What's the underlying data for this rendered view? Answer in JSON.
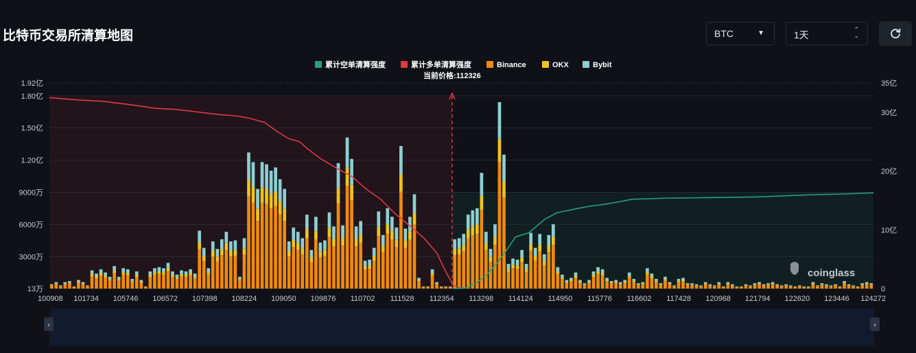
{
  "page": {
    "title": "比特币交易所清算地图"
  },
  "controls": {
    "symbol": {
      "value": "BTC",
      "icon": "caret-down-icon"
    },
    "range": {
      "value": "1天",
      "icon": "sort-updown-icon"
    },
    "refresh": {
      "icon": "refresh-icon"
    }
  },
  "watermark": {
    "text": "coinglass"
  },
  "colors": {
    "short": "#26a17b",
    "long": "#e03a45",
    "binance": "#f08a0c",
    "okx": "#f0c418",
    "bybit": "#8ccfd2",
    "current": "#e03a45"
  },
  "chart_data": {
    "type": "bar",
    "legend_position": "top-center",
    "legend": [
      {
        "name": "累计空单清算强度",
        "color": "#26a17b"
      },
      {
        "name": "累计多单清算强度",
        "color": "#e03a45"
      },
      {
        "name": "Binance",
        "color": "#f08a0c"
      },
      {
        "name": "OKX",
        "color": "#f0c418"
      },
      {
        "name": "Bybit",
        "color": "#8ccfd2"
      }
    ],
    "current_price_label": "当前价格:112326",
    "current_price": 112326,
    "x_range": [
      100908,
      124272
    ],
    "x_ticks": [
      "100908",
      "101734",
      "105746",
      "106572",
      "107398",
      "108224",
      "109050",
      "109876",
      "110702",
      "111528",
      "112354",
      "113298",
      "114124",
      "114950",
      "115776",
      "116602",
      "117428",
      "120968",
      "121794",
      "122620",
      "123446",
      "124272"
    ],
    "left_axis": {
      "ticks": [
        "13万",
        "3000万",
        "6000万",
        "9000万",
        "1.20亿",
        "1.50亿",
        "1.80亿",
        "1.92亿"
      ],
      "tick_values": [
        0.0013,
        0.3,
        0.6,
        0.9,
        1.2,
        1.5,
        1.8,
        1.92
      ],
      "unit": "亿",
      "range": [
        0.0013,
        1.92
      ]
    },
    "right_axis": {
      "ticks": [
        "0",
        "10亿",
        "20亿",
        "30亿",
        "35亿"
      ],
      "tick_values": [
        0,
        10,
        20,
        30,
        35
      ],
      "unit": "亿",
      "range": [
        0,
        35
      ]
    },
    "grid": true,
    "bar_totals": [
      0.04,
      0.06,
      0.03,
      0.06,
      0.07,
      0.02,
      0.08,
      0.06,
      0.03,
      0.17,
      0.14,
      0.18,
      0.15,
      0.11,
      0.21,
      0.11,
      0.19,
      0.18,
      0.09,
      0.16,
      0.08,
      0.02,
      0.16,
      0.19,
      0.2,
      0.19,
      0.24,
      0.16,
      0.13,
      0.17,
      0.16,
      0.18,
      0.14,
      0.54,
      0.38,
      0.19,
      0.44,
      0.37,
      0.46,
      0.53,
      0.44,
      0.45,
      0.11,
      0.47,
      1.27,
      1.18,
      0.93,
      1.18,
      1.16,
      1.1,
      1.13,
      1.02,
      0.93,
      0.44,
      0.57,
      0.53,
      0.47,
      0.69,
      0.36,
      0.67,
      0.43,
      0.45,
      0.71,
      0.58,
      1.17,
      0.59,
      1.41,
      1.21,
      0.58,
      0.63,
      0.26,
      0.27,
      0.38,
      0.72,
      0.5,
      0.75,
      0.67,
      0.57,
      1.33,
      0.56,
      0.67,
      0.88,
      0.1,
      0.02,
      0.02,
      0.18,
      0.06,
      0.02,
      0.02,
      0.02,
      0.46,
      0.47,
      0.51,
      0.69,
      0.73,
      0.75,
      1.08,
      0.53,
      0.37,
      0.6,
      1.74,
      1.25,
      0.23,
      0.28,
      0.27,
      0.36,
      0.23,
      0.52,
      0.38,
      0.51,
      0.32,
      0.5,
      0.6,
      0.2,
      0.13,
      0.08,
      0.1,
      0.15,
      0.08,
      0.05,
      0.08,
      0.16,
      0.2,
      0.18,
      0.1,
      0.07,
      0.08,
      0.06,
      0.08,
      0.15,
      0.09,
      0.05,
      0.06,
      0.19,
      0.14,
      0.09,
      0.05,
      0.11,
      0.06,
      0.03,
      0.09,
      0.1,
      0.05,
      0.05,
      0.04,
      0.03,
      0.06,
      0.04,
      0.03,
      0.06,
      0.02,
      0.06,
      0.04,
      0.02,
      0.02,
      0.04,
      0.03,
      0.05,
      0.06,
      0.04,
      0.05,
      0.06,
      0.04,
      0.03,
      0.04,
      0.03,
      0.02,
      0.03,
      0.02,
      0.02,
      0.06,
      0.03,
      0.05,
      0.04,
      0.03,
      0.04,
      0.02,
      0.07,
      0.04,
      0.03,
      0.02,
      0.05,
      0.06,
      0.05
    ],
    "bar_mix": {
      "binance": 0.68,
      "okx": 0.12,
      "bybit": 0.2
    },
    "cumulative_long": {
      "axis": "right",
      "points": [
        [
          100908,
          32.5
        ],
        [
          101734,
          32.1
        ],
        [
          102380,
          31.9
        ],
        [
          103200,
          31.3
        ],
        [
          103900,
          30.7
        ],
        [
          104500,
          30.5
        ],
        [
          105200,
          30.0
        ],
        [
          105746,
          29.6
        ],
        [
          106200,
          29.4
        ],
        [
          106572,
          29.0
        ],
        [
          107000,
          28.3
        ],
        [
          107398,
          26.6
        ],
        [
          107700,
          25.5
        ],
        [
          108000,
          25.0
        ],
        [
          108224,
          23.8
        ],
        [
          108600,
          22.1
        ],
        [
          109050,
          20.5
        ],
        [
          109500,
          19.0
        ],
        [
          109876,
          17.0
        ],
        [
          110300,
          15.2
        ],
        [
          110702,
          12.8
        ],
        [
          111100,
          10.8
        ],
        [
          111528,
          8.6
        ],
        [
          111900,
          6.0
        ],
        [
          112100,
          3.4
        ],
        [
          112354,
          0.6
        ],
        [
          112600,
          0
        ]
      ]
    },
    "cumulative_short": {
      "axis": "right",
      "points": [
        [
          112354,
          0
        ],
        [
          112700,
          0.1
        ],
        [
          113000,
          0.9
        ],
        [
          113298,
          2.3
        ],
        [
          113600,
          4.3
        ],
        [
          113900,
          6.8
        ],
        [
          114124,
          8.8
        ],
        [
          114500,
          9.5
        ],
        [
          114950,
          11.8
        ],
        [
          115300,
          12.9
        ],
        [
          115776,
          13.5
        ],
        [
          116200,
          14.0
        ],
        [
          116602,
          14.3
        ],
        [
          117000,
          14.7
        ],
        [
          117428,
          15.2
        ],
        [
          118500,
          15.4
        ],
        [
          120000,
          15.5
        ],
        [
          120968,
          15.6
        ],
        [
          121794,
          15.8
        ],
        [
          122620,
          16.0
        ],
        [
          123446,
          16.1
        ],
        [
          124272,
          16.3
        ]
      ]
    },
    "scrollbar": {
      "handle_left": "⏸",
      "handle_right": "⏸"
    }
  }
}
